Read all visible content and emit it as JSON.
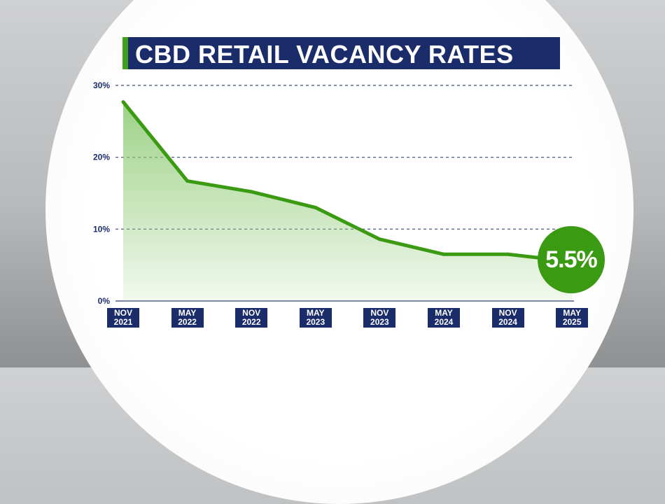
{
  "chart_data": {
    "type": "area",
    "title": "CBD RETAIL VACANCY RATES",
    "categories": [
      [
        "NOV",
        "2021"
      ],
      [
        "MAY",
        "2022"
      ],
      [
        "NOV",
        "2022"
      ],
      [
        "MAY",
        "2023"
      ],
      [
        "NOV",
        "2023"
      ],
      [
        "MAY",
        "2024"
      ],
      [
        "NOV",
        "2024"
      ],
      [
        "MAY",
        "2025"
      ]
    ],
    "values": [
      27.7,
      16.7,
      15.2,
      13.0,
      8.6,
      6.5,
      6.5,
      5.5
    ],
    "ylim": [
      0,
      30
    ],
    "yticks": [
      "0%",
      "10%",
      "20%",
      "30%"
    ],
    "ytick_values": [
      0,
      10,
      20,
      30
    ],
    "grid": "dashed horizontal",
    "highlight_label": "5.5%",
    "colors": {
      "line": "#3a9a12",
      "fill": "#8cc971",
      "navy": "#1b2c6b",
      "badge": "#3a9a12"
    }
  }
}
